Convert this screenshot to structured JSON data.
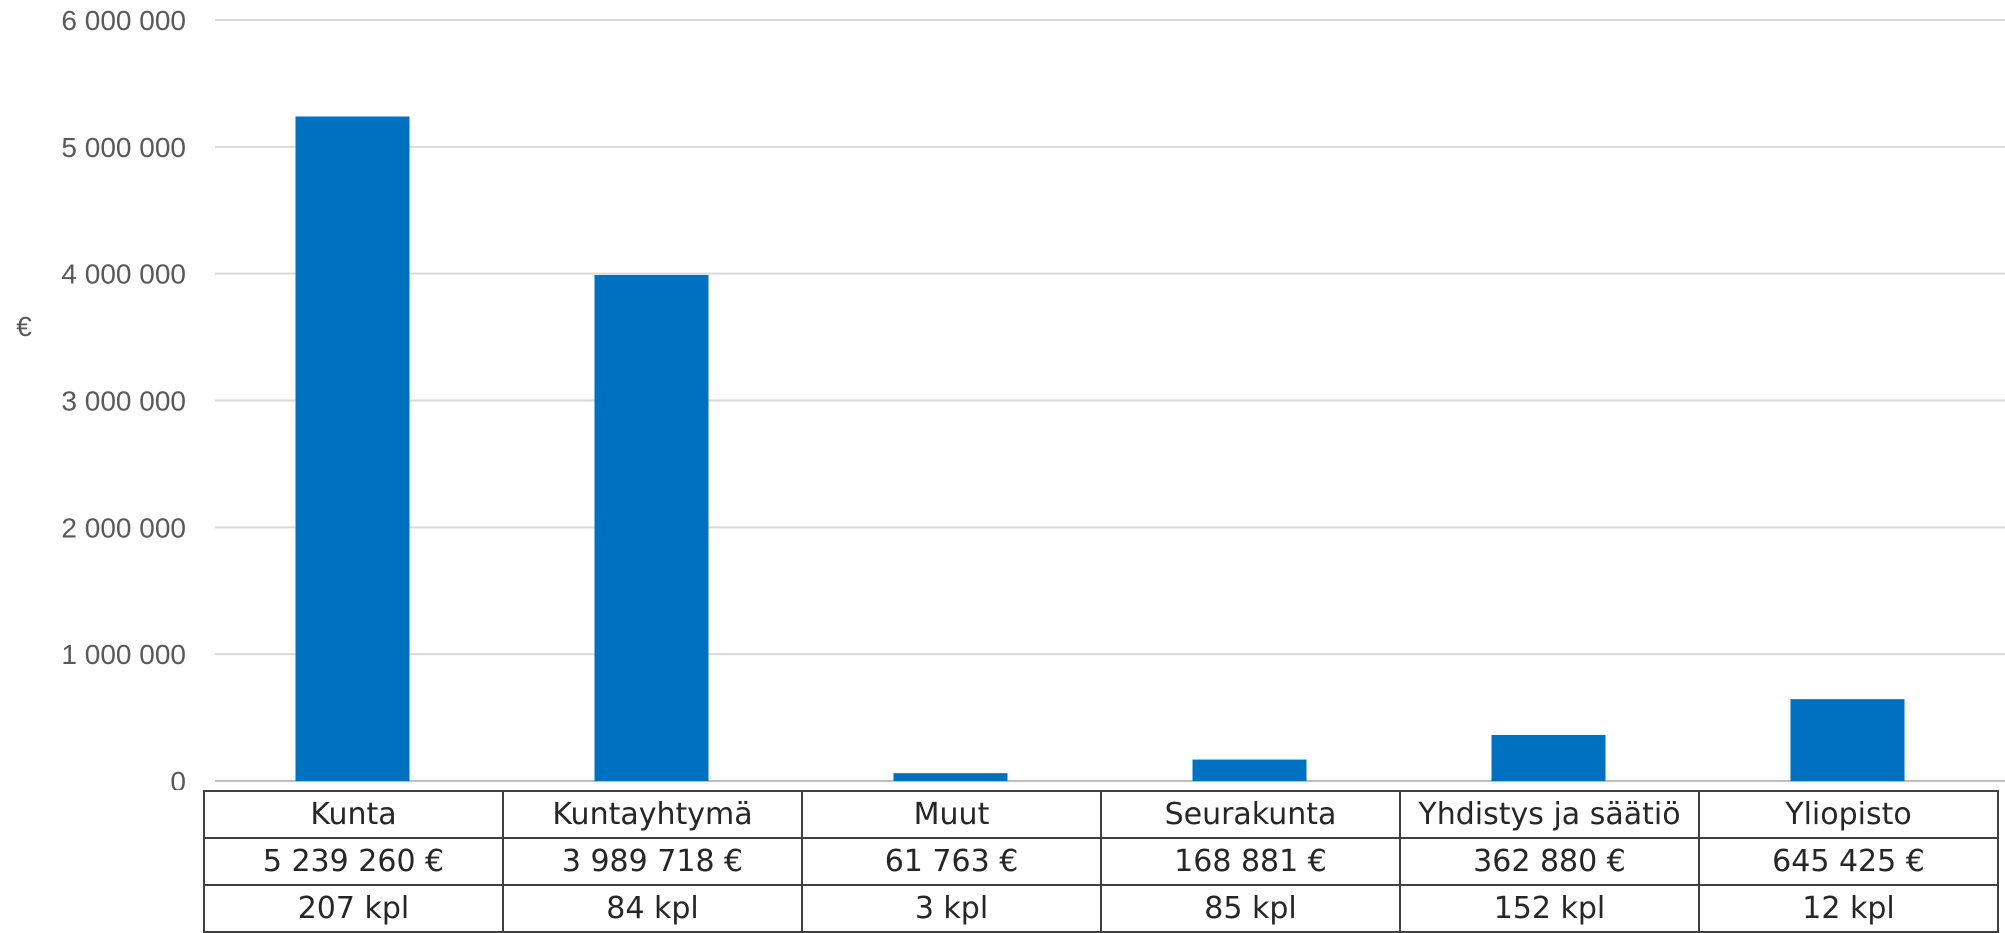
{
  "chart_data": {
    "type": "bar",
    "categories": [
      "Kunta",
      "Kuntayhtymä",
      "Muut",
      "Seurakunta",
      "Yhdistys ja säätiö",
      "Yliopisto"
    ],
    "values": [
      5239260,
      3989718,
      61763,
      168881,
      362880,
      645425
    ],
    "ylabel": "€",
    "xlabel": "",
    "ylim": [
      0,
      6000000
    ],
    "yticks": [
      "0",
      "1 000 000",
      "2 000 000",
      "3 000 000",
      "4 000 000",
      "5 000 000",
      "6 000 000"
    ],
    "grid": true,
    "bar_color": "#0070C0",
    "table": {
      "amounts": [
        "5 239 260 €",
        "3 989 718 €",
        "61 763 €",
        "168 881 €",
        "362 880 €",
        "645 425 €"
      ],
      "counts": [
        "207 kpl",
        "84 kpl",
        "3 kpl",
        "85 kpl",
        "152 kpl",
        "12 kpl"
      ]
    }
  }
}
